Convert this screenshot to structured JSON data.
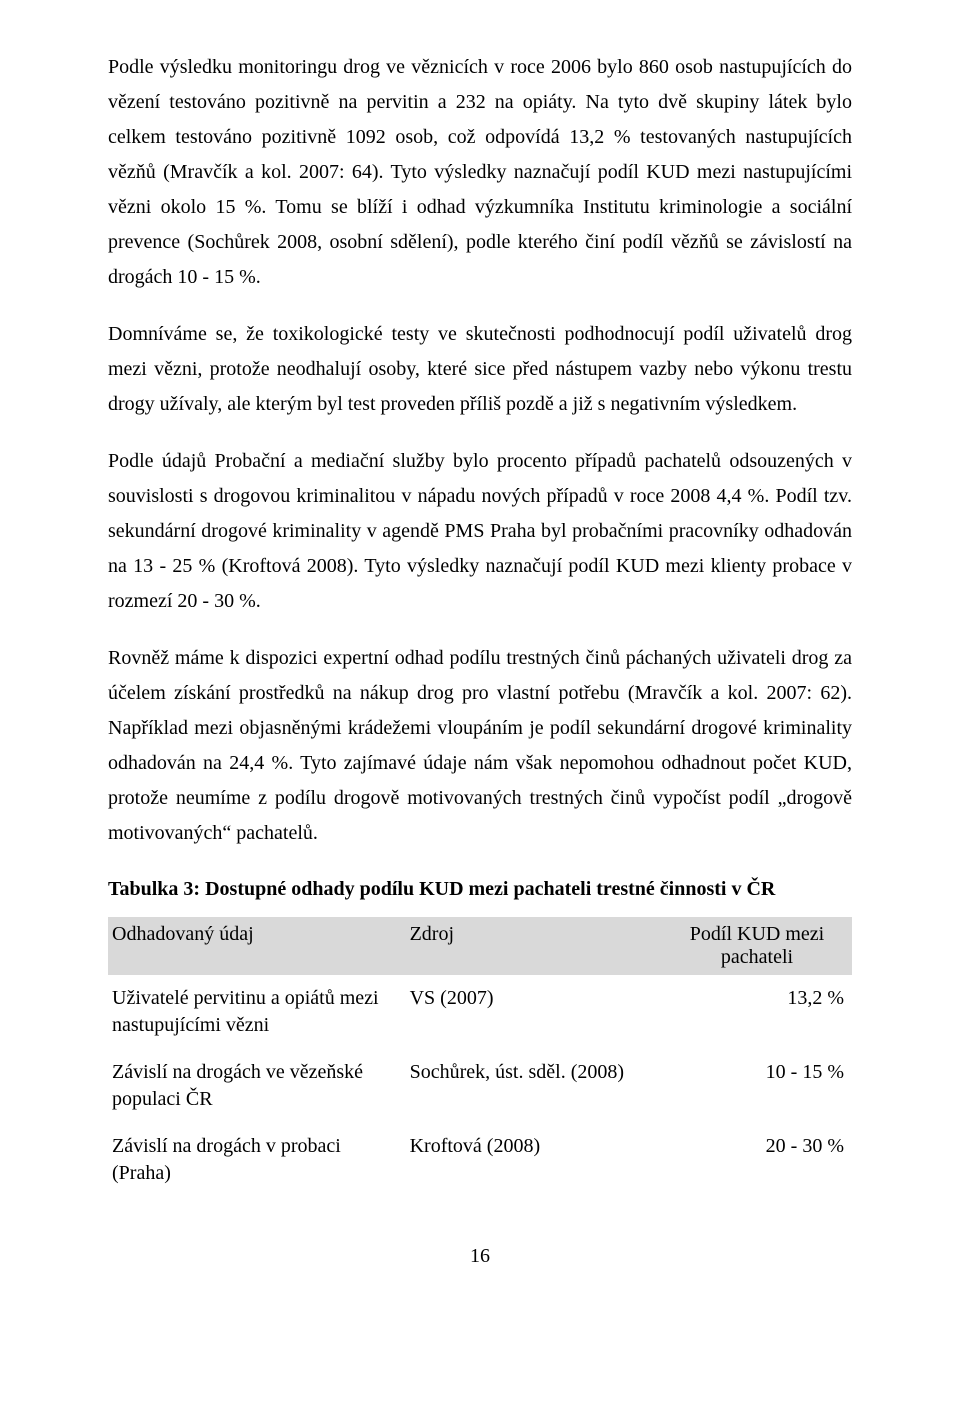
{
  "paragraphs": {
    "p1": "Podle výsledku monitoringu drog ve věznicích v roce 2006 bylo 860 osob nastupujících do vězení testováno pozitivně na pervitin a 232 na opiáty. Na tyto dvě skupiny látek bylo celkem testováno pozitivně 1092 osob, což odpovídá 13,2 % testovaných nastupujících vězňů (Mravčík a kol. 2007: 64). Tyto výsledky naznačují podíl KUD mezi nastupujícími vězni okolo 15 %. Tomu se blíží i odhad výzkumníka Institutu kriminologie a sociální prevence (Sochůrek 2008, osobní sdělení), podle kterého činí podíl vězňů se závislostí na drogách 10 - 15 %.",
    "p2": "Domníváme se, že toxikologické testy ve skutečnosti podhodnocují podíl uživatelů drog mezi vězni, protože neodhalují osoby, které sice před nástupem vazby nebo výkonu trestu drogy užívaly, ale kterým byl test proveden příliš pozdě a již s negativním výsledkem.",
    "p3": "Podle údajů Probační a mediační služby bylo procento případů pachatelů odsouzených v souvislosti s drogovou kriminalitou v nápadu nových případů v roce 2008 4,4 %. Podíl tzv. sekundární drogové kriminality v agendě PMS Praha byl probačními pracovníky odhadován na 13 - 25 % (Kroftová 2008). Tyto výsledky naznačují podíl KUD mezi klienty probace v rozmezí 20 - 30 %.",
    "p4": "Rovněž máme k dispozici expertní odhad podílu trestných činů páchaných uživateli drog za účelem získání prostředků na nákup drog pro vlastní potřebu (Mravčík a kol. 2007: 62). Například mezi objasněnými krádežemi vloupáním je podíl sekundární drogové kriminality odhadován na 24,4 %. Tyto zajímavé údaje nám však nepomohou odhadnout počet KUD, protože neumíme z podílu drogově motivovaných trestných činů vypočíst podíl „drogově motivovaných“ pachatelů."
  },
  "table": {
    "title": "Tabulka 3: Dostupné odhady podílu KUD mezi pachateli trestné činnosti v ČR",
    "header": {
      "c1": "Odhadovaný údaj",
      "c2": "Zdroj",
      "c3": "Podíl KUD mezi pachateli"
    },
    "rows": [
      {
        "c1": "Uživatelé pervitinu a opiátů mezi nastupujícími vězni",
        "c2": "VS (2007)",
        "c3": "13,2 %"
      },
      {
        "c1": "Závislí na drogách ve vězeňské populaci ČR",
        "c2": "Sochůrek, úst. sděl. (2008)",
        "c3": "10 - 15 %"
      },
      {
        "c1": "Závislí na drogách v probaci (Praha)",
        "c2": "Kroftová (2008)",
        "c3": "20 - 30 %"
      }
    ]
  },
  "pageNumber": "16"
}
